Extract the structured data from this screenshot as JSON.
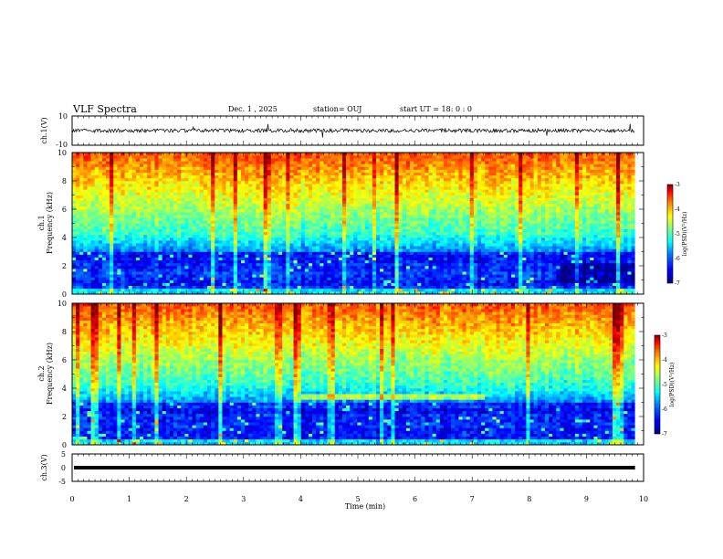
{
  "header": {
    "title": "VLF Spectra",
    "date": "Dec. 1 , 2025",
    "station": "station= OUJ",
    "start_ut": "start UT =  18: 0  : 0"
  },
  "chart_data": [
    {
      "type": "line",
      "name": "ch1-waveform",
      "ylabel": "ch.1(V)",
      "ylim": [
        -10,
        10
      ],
      "ytick_labels": [
        "10",
        "-10"
      ],
      "xlim": [
        0,
        10
      ],
      "baseline_value": 0,
      "trace_end_min": 9.85
    },
    {
      "type": "heatmap",
      "name": "ch1-spectrogram",
      "ylabel_line1": "ch.1",
      "ylabel_line2": "Frequency (kHz)",
      "ylim": [
        0,
        10
      ],
      "xlim": [
        0,
        10
      ],
      "ytick_labels": [
        "0",
        "2",
        "4",
        "6",
        "8",
        "10"
      ],
      "colorbar": {
        "label": "log(PSD)(V²/Hz)",
        "range": [
          -7,
          -3
        ],
        "tick_labels": [
          "-3",
          "-4",
          "-5",
          "-6",
          "-7"
        ]
      }
    },
    {
      "type": "heatmap",
      "name": "ch2-spectrogram",
      "ylabel_line1": "ch.2",
      "ylabel_line2": "Frequency (kHz)",
      "ylim": [
        0,
        10
      ],
      "xlim": [
        0,
        10
      ],
      "ytick_labels": [
        "0",
        "2",
        "4",
        "6",
        "8",
        "10"
      ],
      "colorbar": {
        "label": "log(PSD)(V²/Hz)",
        "range": [
          -7,
          -3
        ],
        "tick_labels": [
          "-3",
          "-4",
          "-5",
          "-6",
          "-7"
        ]
      }
    },
    {
      "type": "line",
      "name": "ch3-waveform",
      "ylabel": "ch.3(V)",
      "ylim": [
        -5,
        5
      ],
      "ytick_labels": [
        "5",
        "0",
        "-5"
      ],
      "xlim": [
        0,
        10
      ],
      "baseline_value": 0,
      "trace_end_min": 9.85
    }
  ],
  "xaxis": {
    "label": "Time  (min)",
    "tick_labels": [
      "0",
      "1",
      "2",
      "3",
      "4",
      "5",
      "6",
      "7",
      "8",
      "9",
      "10"
    ]
  },
  "colors": {
    "colormap": [
      "#00007f",
      "#0000ff",
      "#007fff",
      "#00ffff",
      "#7fff7f",
      "#ffff00",
      "#ff7f00",
      "#ff0000",
      "#7f0000"
    ],
    "trace": "#000000"
  }
}
